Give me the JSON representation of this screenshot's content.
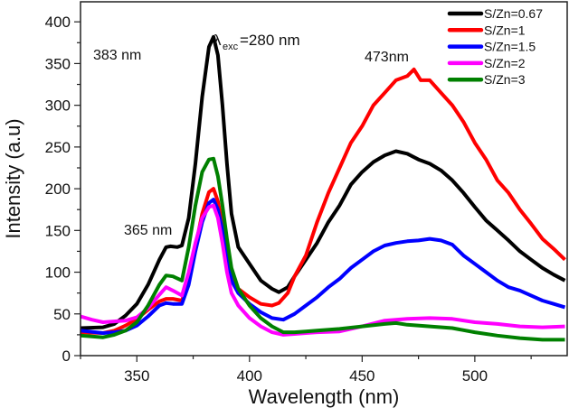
{
  "chart_data": {
    "type": "line",
    "title": "",
    "xlabel": "Wavelength (nm)",
    "ylabel": "Intensity (a.u)",
    "xlim": [
      325,
      541
    ],
    "ylim": [
      0,
      424
    ],
    "xticks": [
      350,
      400,
      450,
      500
    ],
    "yticks": [
      0,
      50,
      100,
      150,
      200,
      250,
      300,
      350,
      400
    ],
    "grid": false,
    "legend_position": "top-right",
    "annotations": {
      "peak383": "383 nm",
      "peak365": "365 nm",
      "peak473": "473nm",
      "lambda": "λ",
      "exc_sub": "exc",
      "exc_value": "=280 nm"
    },
    "series": [
      {
        "name": "S/Zn=0.67",
        "color": "#000000",
        "x": [
          325,
          335,
          340,
          345,
          350,
          355,
          360,
          363,
          365,
          368,
          370,
          373,
          376,
          379,
          382,
          384,
          386,
          388,
          390,
          392,
          395,
          400,
          405,
          410,
          413,
          417,
          420,
          425,
          430,
          435,
          440,
          445,
          450,
          455,
          460,
          465,
          470,
          475,
          480,
          485,
          490,
          495,
          500,
          505,
          510,
          515,
          520,
          525,
          530,
          535,
          540
        ],
        "y": [
          33,
          34,
          38,
          48,
          62,
          85,
          115,
          130,
          131,
          130,
          132,
          165,
          230,
          310,
          370,
          382,
          360,
          300,
          230,
          170,
          130,
          110,
          90,
          80,
          76,
          82,
          95,
          115,
          135,
          160,
          180,
          205,
          220,
          232,
          240,
          245,
          242,
          235,
          230,
          222,
          210,
          195,
          178,
          162,
          150,
          138,
          125,
          115,
          105,
          97,
          90
        ]
      },
      {
        "name": "S/Zn=1",
        "color": "#ff0000",
        "x": [
          325,
          335,
          340,
          345,
          350,
          355,
          360,
          363,
          366,
          370,
          373,
          376,
          379,
          382,
          384,
          386,
          388,
          390,
          392,
          395,
          400,
          405,
          410,
          413,
          417,
          420,
          425,
          430,
          435,
          440,
          445,
          450,
          455,
          460,
          465,
          470,
          473,
          476,
          480,
          485,
          490,
          495,
          500,
          505,
          510,
          515,
          520,
          525,
          530,
          535,
          540
        ],
        "y": [
          28,
          27,
          30,
          36,
          44,
          55,
          65,
          68,
          68,
          66,
          90,
          130,
          170,
          196,
          200,
          185,
          155,
          120,
          95,
          80,
          70,
          62,
          60,
          63,
          75,
          95,
          120,
          160,
          195,
          225,
          255,
          275,
          300,
          315,
          330,
          335,
          343,
          330,
          330,
          315,
          300,
          280,
          255,
          235,
          210,
          195,
          175,
          158,
          140,
          128,
          115
        ]
      },
      {
        "name": "S/Zn=1.5",
        "color": "#0000ff",
        "x": [
          325,
          335,
          340,
          345,
          350,
          355,
          360,
          363,
          366,
          370,
          373,
          376,
          379,
          382,
          384,
          386,
          388,
          390,
          392,
          395,
          400,
          405,
          410,
          415,
          420,
          425,
          430,
          435,
          440,
          445,
          450,
          455,
          460,
          465,
          470,
          475,
          480,
          485,
          490,
          495,
          500,
          505,
          510,
          515,
          520,
          525,
          530,
          535,
          540
        ],
        "y": [
          30,
          27,
          28,
          30,
          36,
          47,
          60,
          63,
          62,
          62,
          85,
          125,
          160,
          183,
          187,
          175,
          150,
          115,
          90,
          75,
          62,
          52,
          45,
          43,
          50,
          60,
          70,
          82,
          92,
          105,
          115,
          125,
          132,
          135,
          137,
          138,
          140,
          138,
          133,
          120,
          110,
          100,
          90,
          82,
          78,
          72,
          66,
          62,
          58
        ]
      },
      {
        "name": "S/Zn=2",
        "color": "#ff00ff",
        "x": [
          325,
          330,
          335,
          340,
          345,
          350,
          355,
          360,
          363,
          366,
          370,
          373,
          376,
          379,
          382,
          384,
          386,
          388,
          390,
          392,
          395,
          400,
          405,
          410,
          415,
          420,
          425,
          430,
          440,
          450,
          460,
          470,
          480,
          490,
          500,
          510,
          520,
          530,
          540
        ],
        "y": [
          47,
          43,
          40,
          41,
          42,
          46,
          57,
          73,
          82,
          78,
          72,
          100,
          135,
          165,
          178,
          180,
          165,
          135,
          100,
          75,
          60,
          45,
          35,
          28,
          25,
          26,
          27,
          28,
          29,
          35,
          42,
          44,
          45,
          44,
          40,
          38,
          35,
          34,
          35
        ]
      },
      {
        "name": "S/Zn=3",
        "color": "#008000",
        "x": [
          325,
          330,
          335,
          340,
          345,
          350,
          355,
          360,
          363,
          366,
          370,
          373,
          376,
          379,
          382,
          384,
          386,
          388,
          390,
          392,
          395,
          400,
          405,
          410,
          415,
          420,
          425,
          430,
          440,
          450,
          460,
          465,
          470,
          480,
          490,
          500,
          510,
          520,
          530,
          540
        ],
        "y": [
          24,
          23,
          22,
          25,
          30,
          40,
          60,
          85,
          96,
          95,
          90,
          130,
          180,
          220,
          235,
          236,
          215,
          180,
          140,
          105,
          80,
          60,
          45,
          35,
          28,
          28,
          29,
          30,
          32,
          35,
          38,
          39,
          37,
          35,
          33,
          28,
          24,
          21,
          19,
          19
        ]
      }
    ]
  }
}
